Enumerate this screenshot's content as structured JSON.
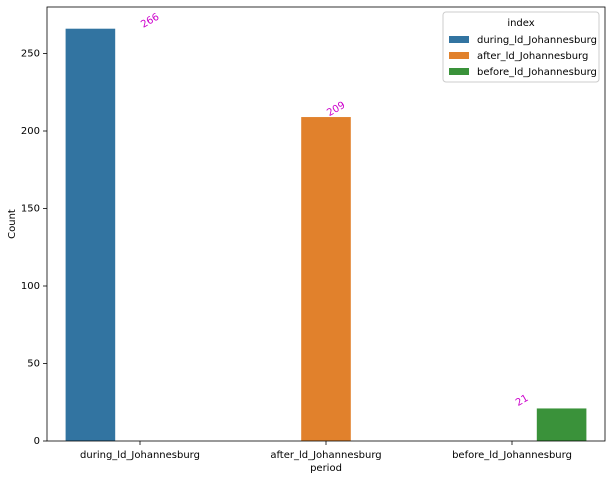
{
  "chart_data": {
    "type": "bar",
    "x_label": "period",
    "y_label": "Count",
    "categories": [
      "during_ld_Johannesburg",
      "after_ld_Johannesburg",
      "before_ld_Johannesburg"
    ],
    "legend_title": "index",
    "legend": "upper right",
    "series": [
      {
        "name": "during_ld_Johannesburg",
        "color": "#3274a1",
        "values": [
          266,
          null,
          null
        ]
      },
      {
        "name": "after_ld_Johannesburg",
        "color": "#e1812c",
        "values": [
          null,
          209,
          null
        ]
      },
      {
        "name": "before_ld_Johannesburg",
        "color": "#3a923a",
        "values": [
          null,
          null,
          21
        ]
      }
    ],
    "label_color": "#cc00cc",
    "ylim": [
      0,
      280
    ],
    "yticks": [
      0,
      50,
      100,
      150,
      200,
      250
    ],
    "grid": false
  }
}
